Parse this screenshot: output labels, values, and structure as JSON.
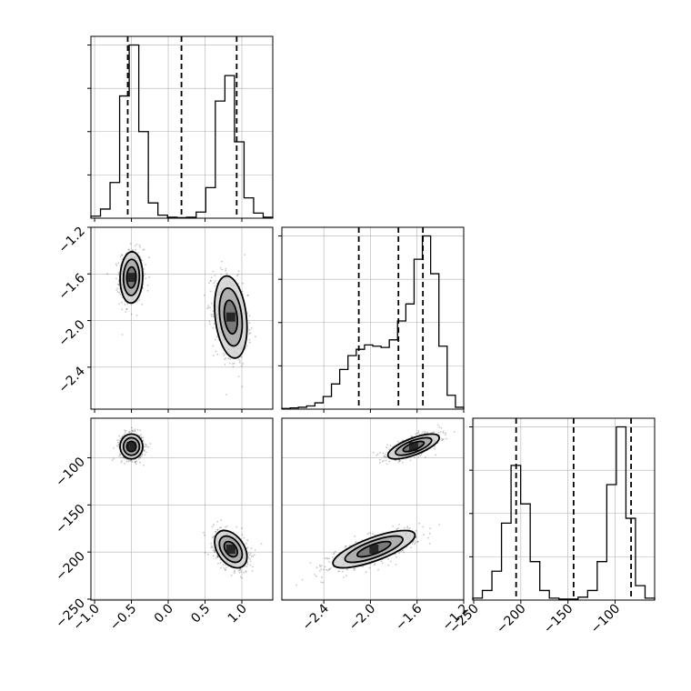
{
  "chart_data": {
    "type": "corner",
    "title": "",
    "params": [
      {
        "range": [
          -1.05,
          1.42
        ],
        "ticks": [
          -1.0,
          -0.5,
          0.0,
          0.5,
          1.0
        ],
        "tick_labels": [
          "−1.0",
          "−0.5",
          "0.0",
          "0.5",
          "1.0"
        ],
        "quantiles": [
          -0.55,
          0.18,
          0.93
        ]
      },
      {
        "range": [
          -2.76,
          -1.2
        ],
        "ticks": [
          -2.4,
          -2.0,
          -1.6,
          -1.2
        ],
        "tick_labels": [
          "−2.4",
          "−2.0",
          "−1.6",
          "−1.2"
        ],
        "quantiles": [
          -2.1,
          -1.76,
          -1.55
        ]
      },
      {
        "range": [
          -251,
          -58
        ],
        "ticks": [
          -250,
          -200,
          -150,
          -100
        ],
        "tick_labels": [
          "−250",
          "−200",
          "−150",
          "−100"
        ],
        "quantiles": [
          -205,
          -144,
          -83
        ]
      }
    ],
    "histograms": [
      {
        "bins": [
          -1.05,
          1.42
        ],
        "counts": [
          0.2,
          0.9,
          3.5,
          12.0,
          17.0,
          8.5,
          1.5,
          0.3,
          0.1,
          0.05,
          0.1,
          0.6,
          3.0,
          11.5,
          14.0,
          7.5,
          2.0,
          0.5,
          0.1
        ]
      },
      {
        "bins": [
          -2.76,
          -1.2
        ],
        "counts": [
          0.1,
          0.2,
          0.3,
          0.5,
          1.0,
          2.0,
          4.0,
          6.3,
          8.5,
          9.5,
          10.2,
          10.0,
          9.8,
          11.0,
          14.0,
          16.7,
          23.8,
          27.5,
          21.5,
          10.0,
          2.2,
          0.3
        ]
      },
      {
        "bins": [
          -251,
          -58
        ],
        "counts": [
          0.2,
          1.0,
          3.0,
          8.0,
          14.0,
          10.0,
          4.0,
          1.0,
          0.2,
          0.1,
          0.1,
          0.3,
          1.0,
          4.0,
          12.0,
          18.0,
          8.5,
          1.5,
          0.2
        ]
      }
    ],
    "modes": [
      {
        "means": [
          -0.5,
          -1.63,
          -88
        ],
        "sd": [
          0.07,
          0.1,
          6
        ]
      },
      {
        "means": [
          0.85,
          -1.97,
          -197
        ],
        "sd": [
          0.1,
          0.16,
          9
        ]
      }
    ],
    "correlations": {
      "0-1": [
        0.05,
        -0.25
      ],
      "0-2": [
        0.0,
        -0.4
      ],
      "1-2": [
        0.7,
        0.75
      ]
    },
    "grid": true,
    "bins": 20
  },
  "colors": {
    "axis": "#000000",
    "grid": "#b0b0b0",
    "scatter": "#000000",
    "contour": "#000000"
  }
}
